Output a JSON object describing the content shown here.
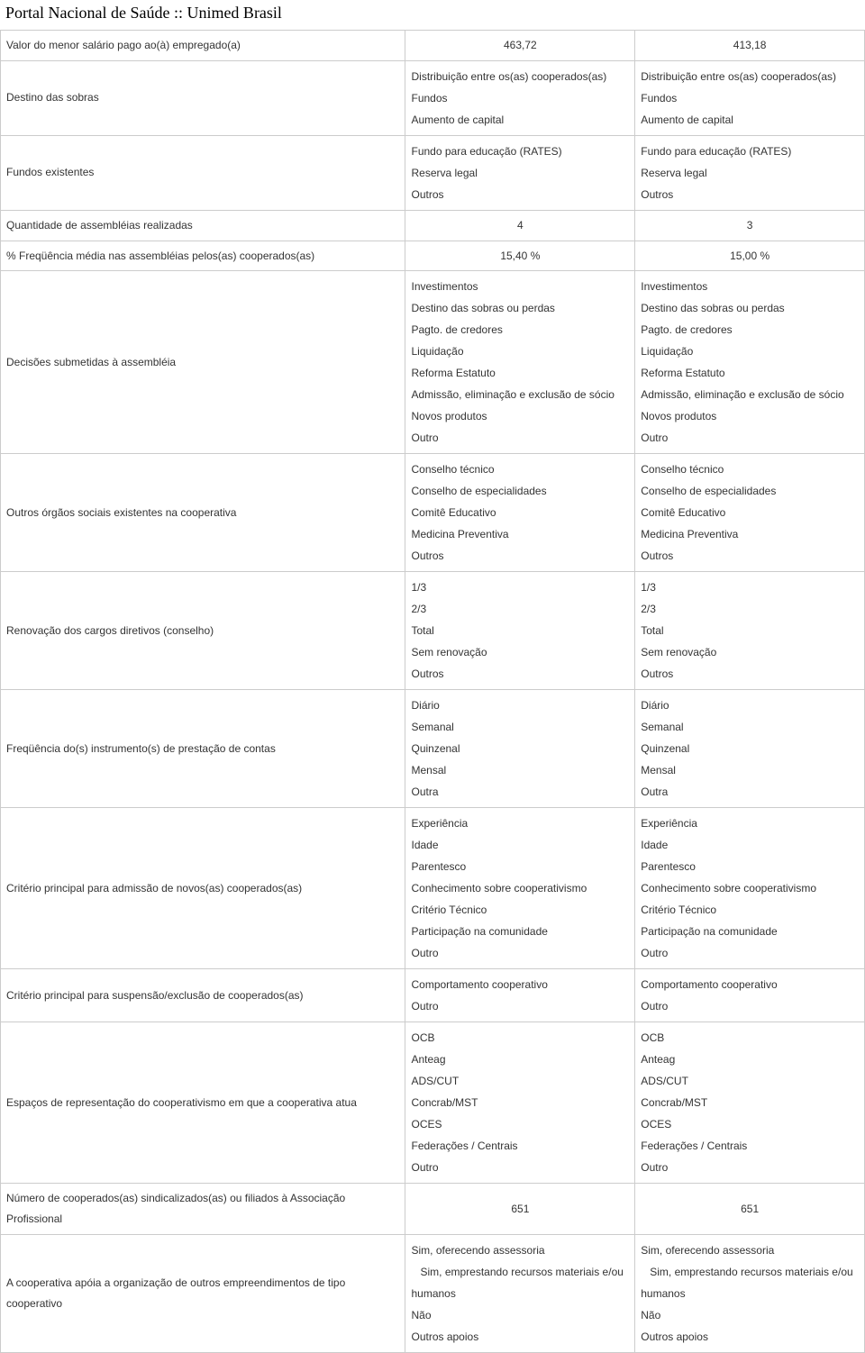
{
  "page_title": "Portal Nacional de Saúde :: Unimed Brasil",
  "rows": [
    {
      "label": "Valor do menor salário pago ao(à) empregado(a)",
      "type": "single",
      "align": "center",
      "col1": "463,72",
      "col2": "413,18"
    },
    {
      "label": "Destino das sobras",
      "type": "list",
      "col1": [
        "Distribuição entre os(as) cooperados(as)",
        "Fundos",
        "Aumento de capital"
      ],
      "col2": [
        "Distribuição entre os(as) cooperados(as)",
        "Fundos",
        "Aumento de capital"
      ]
    },
    {
      "label": "Fundos existentes",
      "type": "list",
      "col1": [
        "Fundo para educação (RATES)",
        "Reserva legal",
        "Outros"
      ],
      "col2": [
        "Fundo para educação (RATES)",
        "Reserva legal",
        "Outros"
      ]
    },
    {
      "label": "Quantidade de assembléias realizadas",
      "type": "single",
      "align": "center",
      "col1": "4",
      "col2": "3"
    },
    {
      "label": "% Freqüência média nas assembléias pelos(as) cooperados(as)",
      "type": "single",
      "align": "center",
      "col1": "15,40 %",
      "col2": "15,00 %"
    },
    {
      "label": "Decisões submetidas à assembléia",
      "type": "list",
      "col1": [
        "Investimentos",
        "Destino das sobras ou perdas",
        "Pagto. de credores",
        "Liquidação",
        "Reforma Estatuto",
        "Admissão, eliminação e exclusão de sócio",
        "Novos produtos",
        "Outro"
      ],
      "col2": [
        "Investimentos",
        "Destino das sobras ou perdas",
        "Pagto. de credores",
        "Liquidação",
        "Reforma Estatuto",
        "Admissão, eliminação e exclusão de sócio",
        "Novos produtos",
        "Outro"
      ]
    },
    {
      "label": "Outros órgãos sociais existentes na cooperativa",
      "type": "list",
      "col1": [
        "Conselho técnico",
        "Conselho de especialidades",
        "Comitê Educativo",
        "Medicina Preventiva",
        "Outros"
      ],
      "col2": [
        "Conselho técnico",
        "Conselho de especialidades",
        "Comitê Educativo",
        "Medicina Preventiva",
        "Outros"
      ]
    },
    {
      "label": "Renovação dos cargos diretivos (conselho)",
      "type": "list",
      "col1": [
        "1/3",
        "2/3",
        "Total",
        "Sem renovação",
        "Outros"
      ],
      "col2": [
        "1/3",
        "2/3",
        "Total",
        "Sem renovação",
        "Outros"
      ]
    },
    {
      "label": "Freqüência do(s) instrumento(s) de prestação de contas",
      "type": "list",
      "col1": [
        "Diário",
        "Semanal",
        "Quinzenal",
        "Mensal",
        "Outra"
      ],
      "col2": [
        "Diário",
        "Semanal",
        "Quinzenal",
        "Mensal",
        "Outra"
      ]
    },
    {
      "label": "Critério principal para admissão de novos(as) cooperados(as)",
      "type": "list",
      "col1": [
        "Experiência",
        "Idade",
        "Parentesco",
        "Conhecimento sobre cooperativismo",
        "Critério Técnico",
        "Participação na comunidade",
        "Outro"
      ],
      "col2": [
        "Experiência",
        "Idade",
        "Parentesco",
        "Conhecimento sobre cooperativismo",
        "Critério Técnico",
        "Participação na comunidade",
        "Outro"
      ]
    },
    {
      "label": "Critério principal para suspensão/exclusão de cooperados(as)",
      "type": "list",
      "col1": [
        "Comportamento cooperativo",
        "Outro"
      ],
      "col2": [
        "Comportamento cooperativo",
        "Outro"
      ]
    },
    {
      "label": "Espaços de representação do cooperativismo em que a cooperativa atua",
      "type": "list",
      "col1": [
        "OCB",
        "Anteag",
        "ADS/CUT",
        "Concrab/MST",
        "OCES",
        "Federações / Centrais",
        "Outro"
      ],
      "col2": [
        "OCB",
        "Anteag",
        "ADS/CUT",
        "Concrab/MST",
        "OCES",
        "Federações / Centrais",
        "Outro"
      ]
    },
    {
      "label": "Número de cooperados(as) sindicalizados(as) ou filiados à Associação Profissional",
      "type": "single",
      "align": "center",
      "col1": "651",
      "col2": "651"
    },
    {
      "label": "A cooperativa apóia a organização de outros empreendimentos de tipo cooperativo",
      "type": "list",
      "col1": [
        "Sim, oferecendo assessoria",
        "   Sim, emprestando recursos materiais e/ou humanos",
        "Não",
        "Outros apoios"
      ],
      "col2": [
        "Sim, oferecendo assessoria",
        "   Sim, emprestando recursos materiais e/ou humanos",
        "Não",
        "Outros apoios"
      ]
    }
  ]
}
